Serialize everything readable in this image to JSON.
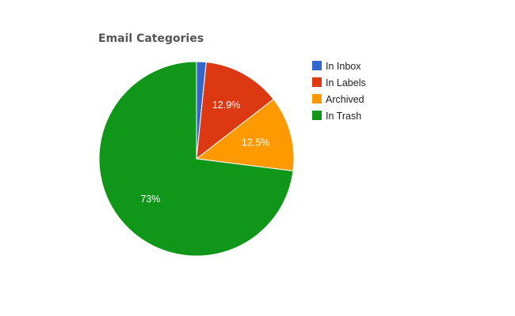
{
  "chart_data": {
    "type": "pie",
    "title": "Email Categories",
    "labels": [
      "In Inbox",
      "In Labels",
      "Archived",
      "In Trash"
    ],
    "values": [
      1.6,
      12.9,
      12.5,
      73
    ],
    "value_labels": [
      "",
      "12.9%",
      "12.5%",
      "73%"
    ],
    "colors": [
      "#3366cc",
      "#dc3912",
      "#ff9900",
      "#109618"
    ],
    "start_angle": 0,
    "direction": "clockwise",
    "legend_position": "right"
  }
}
